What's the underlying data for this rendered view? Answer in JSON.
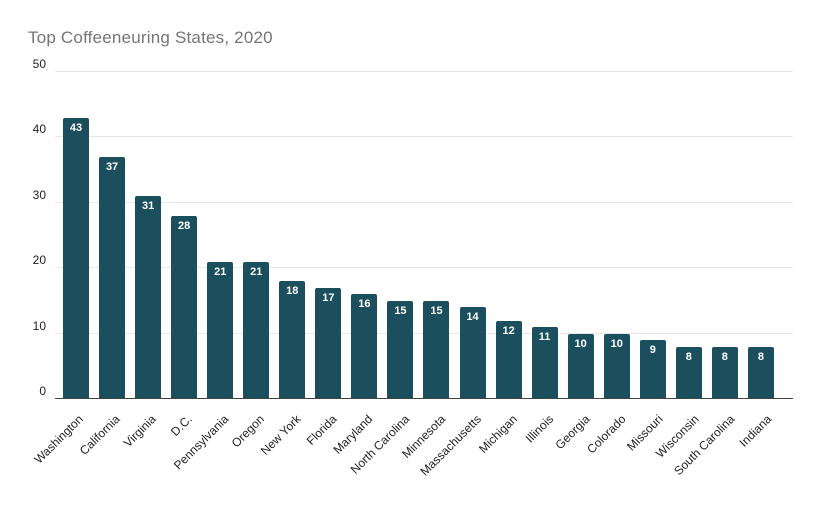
{
  "chart_data": {
    "type": "bar",
    "title": "Top Coffeeneuring States, 2020",
    "categories": [
      "Washington",
      "California",
      "Virginia",
      "D.C.",
      "Pennsylvania",
      "Oregon",
      "New York",
      "Florida",
      "Maryland",
      "North Carolina",
      "Minnesota",
      "Massachusetts",
      "Michigan",
      "Illinois",
      "Georgia",
      "Colorado",
      "Missouri",
      "Wisconsin",
      "South Carolina",
      "Indiana"
    ],
    "values": [
      43,
      37,
      31,
      28,
      21,
      21,
      18,
      17,
      16,
      15,
      15,
      14,
      12,
      11,
      10,
      10,
      9,
      8,
      8,
      8
    ],
    "xlabel": "",
    "ylabel": "",
    "ylim": [
      0,
      50
    ],
    "yticks": [
      0,
      10,
      20,
      30,
      40,
      50
    ],
    "grid": true,
    "legend_position": "none",
    "bar_labels": true,
    "x_tick_rotation_deg": 45
  },
  "colors": {
    "bar": "#1b4f5e",
    "bar_label": "#ffffff",
    "title": "#757575",
    "axis_text": "#222222",
    "gridline": "#e6e6e6",
    "baseline": "#424242",
    "background": "#ffffff"
  }
}
